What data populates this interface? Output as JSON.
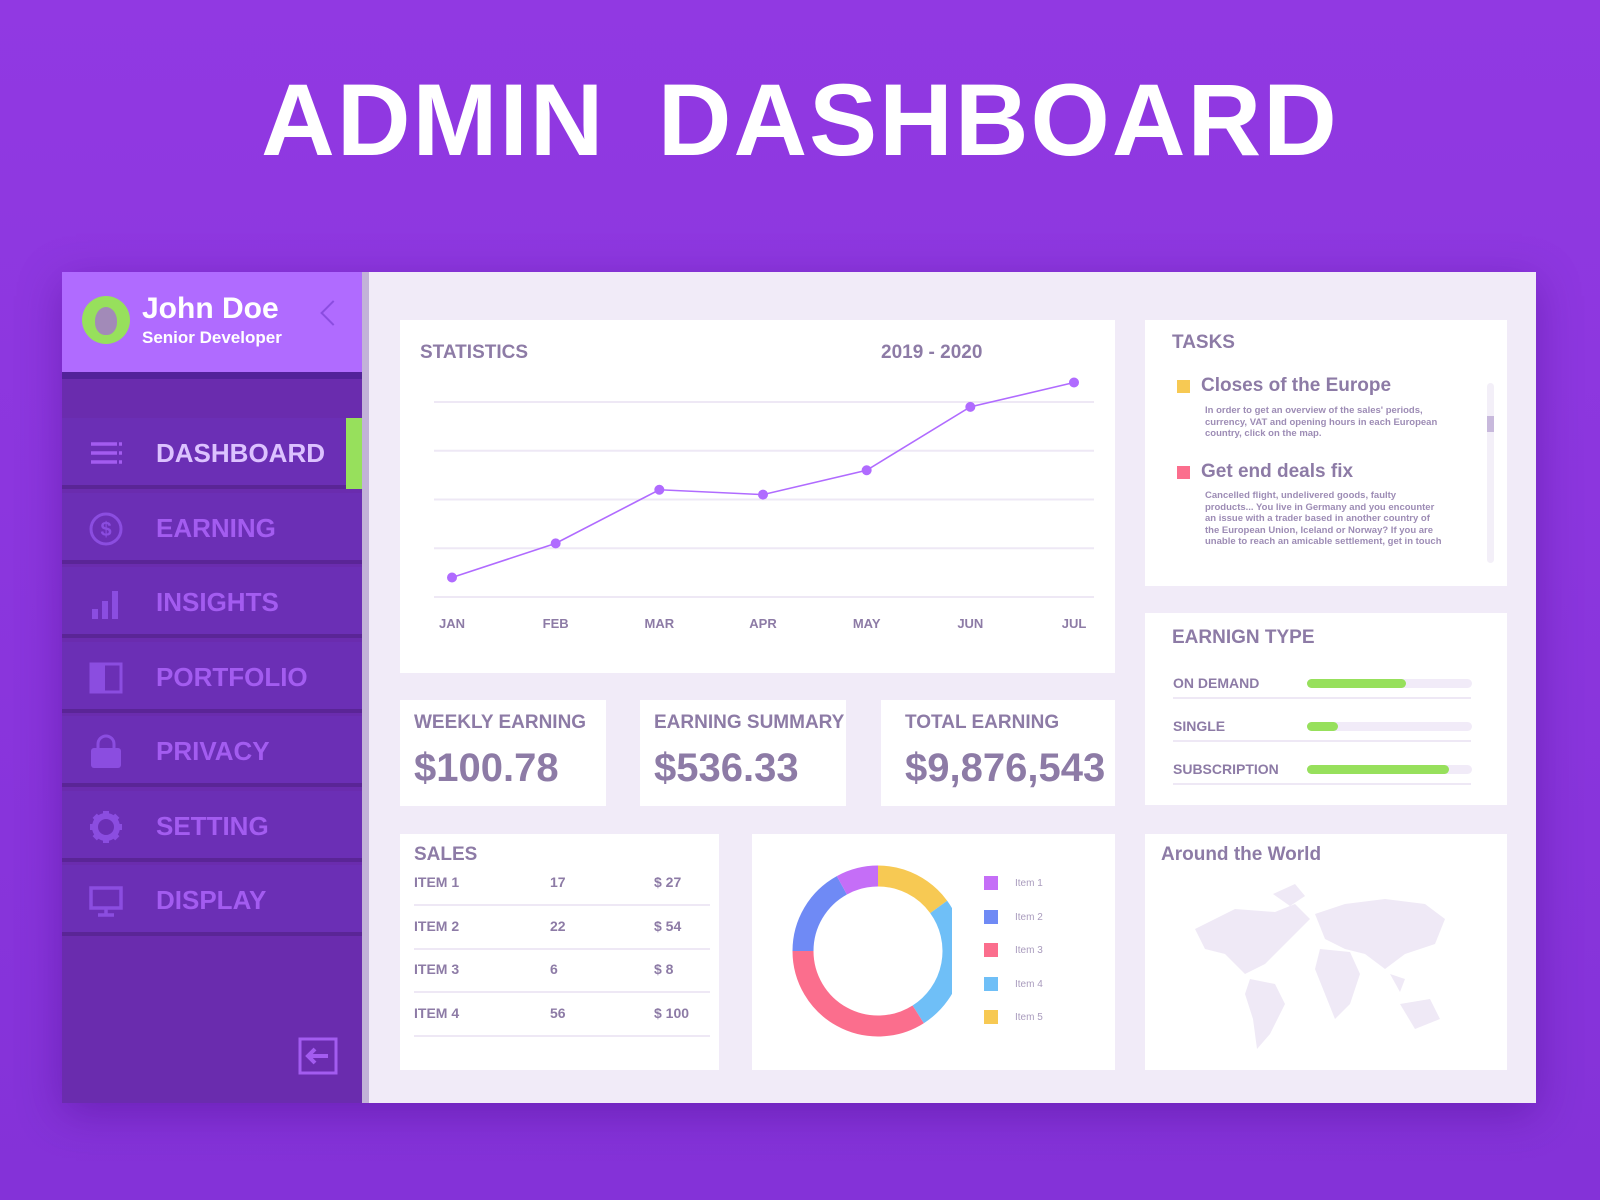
{
  "page_title": "ADMIN DASHBOARD",
  "user": {
    "name": "John Doe",
    "role": "Senior Developer"
  },
  "nav": [
    {
      "label": "DASHBOARD",
      "icon": "menu-icon",
      "active": true
    },
    {
      "label": "EARNING",
      "icon": "dollar-icon"
    },
    {
      "label": "INSIGHTS",
      "icon": "bar-chart-icon"
    },
    {
      "label": "PORTFOLIO",
      "icon": "portfolio-icon"
    },
    {
      "label": "PRIVACY",
      "icon": "lock-icon"
    },
    {
      "label": "SETTING",
      "icon": "gear-icon"
    },
    {
      "label": "DISPLAY",
      "icon": "monitor-icon"
    }
  ],
  "colors": {
    "accent": "#b06bff",
    "sidebar": "#6a2cae",
    "active": "#97e05c",
    "line": "#b06bff"
  },
  "statistics": {
    "title": "STATISTICS",
    "period": "2019 - 2020"
  },
  "chart_data": [
    {
      "type": "line",
      "title": "STATISTICS",
      "categories": [
        "JAN",
        "FEB",
        "MAR",
        "APR",
        "MAY",
        "JUN",
        "JUL"
      ],
      "values": [
        0.4,
        1.1,
        2.2,
        2.1,
        2.6,
        3.9,
        4.4
      ],
      "ylim": [
        0,
        4
      ],
      "grid": true,
      "color": "#b06bff"
    },
    {
      "type": "pie",
      "donut": true,
      "categories": [
        "Item 1",
        "Item 2",
        "Item 3",
        "Item 4",
        "Item 5"
      ],
      "values": [
        8,
        17,
        34,
        26,
        15
      ],
      "colors": [
        "#c56ef7",
        "#6f8af5",
        "#fb6e8d",
        "#6fbff7",
        "#f7c953"
      ],
      "legend": "right"
    }
  ],
  "kpis": [
    {
      "label": "WEEKLY EARNING",
      "value": "$100.78"
    },
    {
      "label": "EARNING SUMMARY",
      "value": "$536.33"
    },
    {
      "label": "TOTAL EARNING",
      "value": "$9,876,543"
    }
  ],
  "tasks": {
    "title": "TASKS",
    "items": [
      {
        "title": "Closes of the Europe",
        "color": "#f7c953",
        "body": "In order to get an overview of the sales' periods, currency, VAT and opening hours in each European country, click on the map."
      },
      {
        "title": "Get end deals fix",
        "color": "#fb6e8d",
        "body": "Cancelled flight, undelivered goods, faulty products... You live in Germany and you encounter an issue with a trader based in another country of the European Union, Iceland or Norway? If you are unable to reach an amicable settlement, get in touch"
      }
    ],
    "scroll_position": 0.2
  },
  "earning_type": {
    "title": "EARNIGN TYPE",
    "items": [
      {
        "label": "ON DEMAND",
        "fraction": 0.6
      },
      {
        "label": "SINGLE",
        "fraction": 0.19
      },
      {
        "label": "SUBSCRIPTION",
        "fraction": 0.86
      }
    ]
  },
  "sales": {
    "title": "SALES",
    "rows": [
      [
        "ITEM 1",
        "17",
        "$ 27"
      ],
      [
        "ITEM 2",
        "22",
        "$ 54"
      ],
      [
        "ITEM 3",
        "6",
        "$ 8"
      ],
      [
        "ITEM 4",
        "56",
        "$ 100"
      ]
    ]
  },
  "world": {
    "title": "Around the World"
  }
}
